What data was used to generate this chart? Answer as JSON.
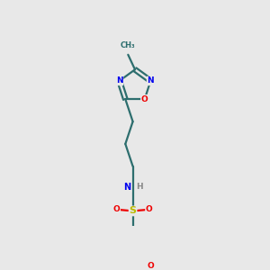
{
  "bg_color": "#e8e8e8",
  "bond_color": "#2d6e6e",
  "atom_colors": {
    "N": "#0000ee",
    "O": "#ee0000",
    "S": "#bbbb00",
    "H": "#888888",
    "C": "#2d6e6e"
  },
  "figsize": [
    3.0,
    3.0
  ],
  "dpi": 100,
  "bond_lw": 1.6
}
